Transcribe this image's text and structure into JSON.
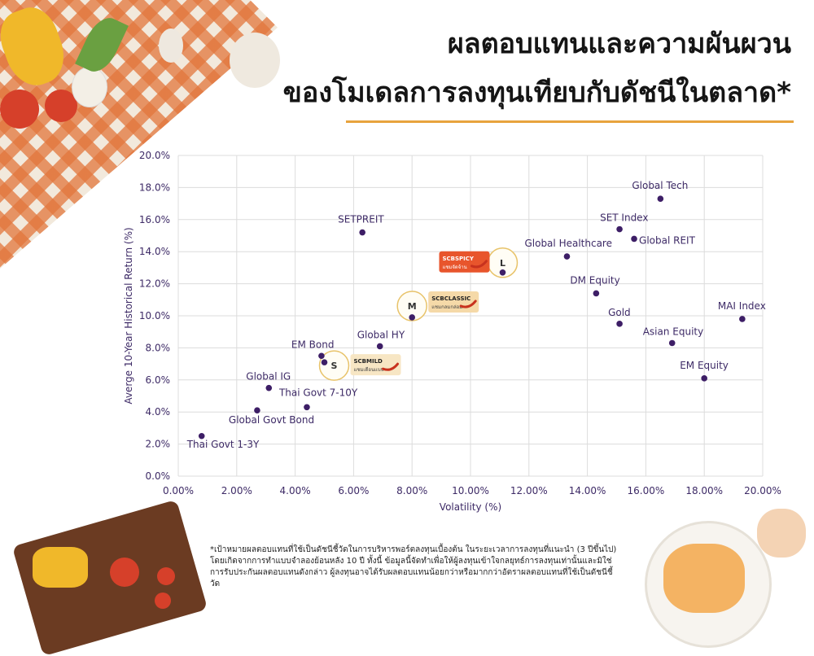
{
  "title_line1": "ผลตอบแทนและความผันผวน",
  "title_line2": "ของโมเดลการลงทุนเทียบกับดัชนีในตลาด*",
  "footnote": "*เป้าหมายผลตอบแทนที่ใช้เป็นดัชนีชี้วัดในการบริหารพอร์ตลงทุนเบื้องต้น ในระยะเวลาการลงทุนที่แนะนำ (3 ปีขึ้นไป) โดยเกิดจากการทำแบบจำลองย้อนหลัง 10 ปี ทั้งนี้ ข้อมูลนี้จัดทำเพื่อให้ผู้ลงทุนเข้าใจกลยุทธ์การลงทุนเท่านั้นและมิใช่การรับประกันผลตอบแทนดังกล่าว ผู้ลงทุนอาจได้รับผลตอบแทนน้อยกว่าหรือมากกว่าอัตราผลตอบแทนที่ใช้เป็นดัชนีชี้วัด",
  "colors": {
    "accent_rule": "#e8a33d",
    "point": "#3d1e66",
    "text": "#3d2a66",
    "spicy": "#e8552c",
    "classic": "#f5d9a8",
    "mild": "#f7e6c4"
  },
  "chart_data": {
    "type": "scatter",
    "xlabel": "Volatility (%)",
    "ylabel": "Averge 10-Year Historical Return (%)",
    "xlim": [
      0,
      20
    ],
    "ylim": [
      0,
      20
    ],
    "x_ticks": [
      "0.00%",
      "2.00%",
      "4.00%",
      "6.00%",
      "8.00%",
      "10.00%",
      "12.00%",
      "14.00%",
      "16.00%",
      "18.00%",
      "20.00%"
    ],
    "y_ticks": [
      "0.0%",
      "2.0%",
      "4.0%",
      "6.0%",
      "8.0%",
      "10.0%",
      "12.0%",
      "14.0%",
      "16.0%",
      "18.0%",
      "20.0%"
    ],
    "grid": true,
    "points": [
      {
        "label": "Thai Govt 1-3Y",
        "x": 0.8,
        "y": 2.5
      },
      {
        "label": "Global Govt Bond",
        "x": 2.7,
        "y": 4.1
      },
      {
        "label": "Thai Govt 7-10Y",
        "x": 4.4,
        "y": 4.3
      },
      {
        "label": "Global IG",
        "x": 3.1,
        "y": 5.5
      },
      {
        "label": "EM Bond",
        "x": 4.9,
        "y": 7.5
      },
      {
        "label": "",
        "x": 5.0,
        "y": 7.1
      },
      {
        "label": "Global HY",
        "x": 6.9,
        "y": 8.1
      },
      {
        "label": "SETPREIT",
        "x": 6.3,
        "y": 15.2
      },
      {
        "label": "",
        "x": 8.0,
        "y": 9.9
      },
      {
        "label": "",
        "x": 11.1,
        "y": 12.7
      },
      {
        "label": "Global Healthcare",
        "x": 13.3,
        "y": 13.7
      },
      {
        "label": "DM Equity",
        "x": 14.3,
        "y": 11.4
      },
      {
        "label": "Gold",
        "x": 15.1,
        "y": 9.5
      },
      {
        "label": "SET Index",
        "x": 15.1,
        "y": 15.4
      },
      {
        "label": "Global REIT",
        "x": 15.6,
        "y": 14.8
      },
      {
        "label": "Global Tech",
        "x": 16.5,
        "y": 17.3
      },
      {
        "label": "Asian Equity",
        "x": 16.9,
        "y": 8.3
      },
      {
        "label": "EM Equity",
        "x": 18.0,
        "y": 6.1
      },
      {
        "label": "MAI Index",
        "x": 19.3,
        "y": 9.8
      }
    ],
    "models": [
      {
        "letter": "S",
        "name": "SCBMILD",
        "sub": "แชมเดือนแบบ",
        "x": 5.0,
        "y": 7.1
      },
      {
        "letter": "M",
        "name": "SCBCLASSIC",
        "sub": "แชมกลมกล่อม",
        "x": 8.0,
        "y": 9.9
      },
      {
        "letter": "L",
        "name": "SCBSPICY",
        "sub": "แชมจัดจ้าน",
        "x": 11.1,
        "y": 12.7
      }
    ]
  }
}
